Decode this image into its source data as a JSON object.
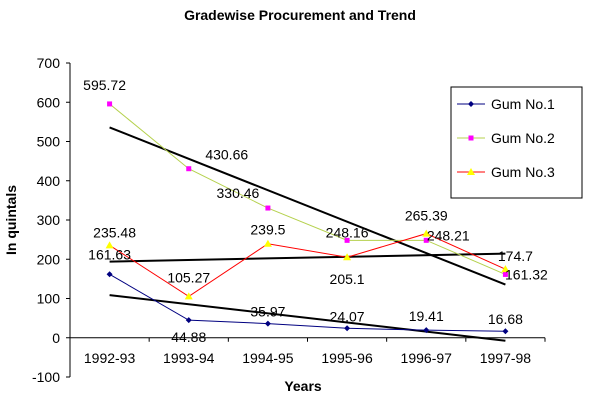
{
  "chart_data": {
    "type": "line",
    "title": "Gradewise Procurement and Trend",
    "xlabel": "Years",
    "ylabel": "In quintals",
    "ylim": [
      -100,
      700
    ],
    "yticks": [
      -100,
      0,
      100,
      200,
      300,
      400,
      500,
      600,
      700
    ],
    "categories": [
      "1992-93",
      "1993-94",
      "1994-95",
      "1995-96",
      "1996-97",
      "1997-98"
    ],
    "legend_position": "right",
    "grid": false,
    "series": [
      {
        "name": "Gum No.1",
        "color": "#000080",
        "marker": "diamond",
        "values": [
          161.63,
          44.88,
          35.97,
          24.07,
          19.41,
          16.68
        ],
        "labels": [
          "161.63",
          "44.88",
          "35.97",
          "24.07",
          "19.41",
          "16.68"
        ],
        "trend": {
          "type": "linear",
          "color": "#000000"
        }
      },
      {
        "name": "Gum No.2",
        "color": "#ff00ff",
        "line_color": "#b5d14d",
        "marker": "square",
        "values": [
          595.72,
          430.66,
          330.46,
          248.16,
          248.21,
          161.32
        ],
        "labels": [
          "595.72",
          "430.66",
          "330.46",
          "248.16",
          "248.21",
          "161.32"
        ],
        "trend": {
          "type": "linear",
          "color": "#000000"
        }
      },
      {
        "name": "Gum No.3",
        "color": "#ffff00",
        "line_color": "#ff0000",
        "marker": "triangle",
        "values": [
          235.48,
          105.27,
          239.5,
          205.1,
          265.39,
          174.7
        ],
        "labels": [
          "235.48",
          "105.27",
          "239.5",
          "205.1",
          "265.39",
          "174.7"
        ],
        "trend": {
          "type": "linear",
          "color": "#000000"
        }
      }
    ]
  }
}
